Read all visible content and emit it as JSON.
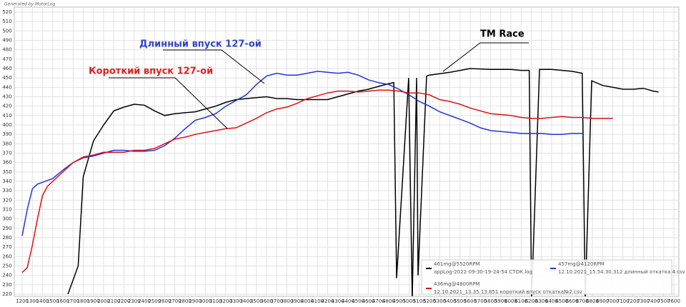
{
  "chart_data": {
    "type": "line",
    "title": "Generated by MotorLog",
    "xlim": [
      1200,
      7600
    ],
    "ylim": [
      220,
      520
    ],
    "xticks": [
      1200,
      1300,
      1400,
      1500,
      1600,
      1700,
      1800,
      1900,
      2000,
      2100,
      2200,
      2300,
      2400,
      2500,
      2600,
      2700,
      2800,
      2900,
      3000,
      3100,
      3200,
      3300,
      3400,
      3500,
      3600,
      3700,
      3800,
      3900,
      4000,
      4100,
      4200,
      4300,
      4400,
      4500,
      4600,
      4700,
      4800,
      4900,
      5000,
      5100,
      5200,
      5300,
      5400,
      5500,
      5600,
      5700,
      5800,
      5900,
      6000,
      6100,
      6200,
      6300,
      6400,
      6500,
      6600,
      6700,
      6800,
      6900,
      7000,
      7100,
      7200,
      7300,
      7400,
      7500,
      7600
    ],
    "yticks": [
      220,
      230,
      240,
      250,
      260,
      270,
      280,
      290,
      300,
      310,
      320,
      330,
      340,
      350,
      360,
      370,
      380,
      390,
      400,
      410,
      420,
      430,
      440,
      450,
      460,
      470,
      480,
      490,
      500,
      510,
      520
    ],
    "grid": true,
    "annotations": [
      {
        "text": "Длинный впуск 127-ой",
        "color": "#3344cc"
      },
      {
        "text": "Короткий впуск 127-ой",
        "color": "#dd2222"
      },
      {
        "text": "TM Race",
        "color": "#000000"
      }
    ],
    "series": [
      {
        "name": "appLog-2022-09-30-19-24-54 СТОК.log",
        "legend_label": "461mg@5520RPM",
        "color": "#000000",
        "x": [
          1650,
          1750,
          1800,
          1900,
          2000,
          2100,
          2200,
          2300,
          2400,
          2500,
          2600,
          2700,
          2800,
          2900,
          3000,
          3100,
          3200,
          3300,
          3400,
          3500,
          3600,
          3700,
          3800,
          3900,
          4000,
          4100,
          4200,
          4300,
          4400,
          4500,
          4600,
          4700,
          4800,
          4850,
          4877,
          4996,
          5031,
          5074,
          5088,
          5172,
          5200,
          5400,
          5500,
          5600,
          5800,
          6000,
          6100,
          6180,
          6203,
          6281,
          6400,
          6600,
          6700,
          6730,
          6793,
          6900,
          7000,
          7100,
          7200,
          7300,
          7400,
          7450
        ],
        "values": [
          220,
          250,
          345,
          383,
          400,
          415,
          419,
          422,
          421,
          415,
          410,
          412,
          413,
          414,
          417,
          420,
          424,
          427,
          428,
          429,
          430,
          428,
          428,
          427,
          427,
          427,
          427,
          430,
          433,
          436,
          438,
          441,
          444,
          445,
          237,
          450,
          215,
          450,
          240,
          452,
          453,
          456,
          458,
          460,
          459,
          459,
          458,
          458,
          215,
          459,
          459,
          457,
          455,
          215,
          447,
          442,
          440,
          438,
          438,
          439,
          436,
          435
        ]
      },
      {
        "name": "12.10.2021_15.54.30.312 длинный откатка 4.csv",
        "legend_label": "457mg@4120RPM",
        "color": "#2233dd",
        "x": [
          1200,
          1250,
          1300,
          1350,
          1400,
          1500,
          1600,
          1700,
          1800,
          1900,
          2000,
          2100,
          2200,
          2300,
          2400,
          2500,
          2600,
          2700,
          2800,
          2900,
          3000,
          3100,
          3200,
          3300,
          3400,
          3500,
          3600,
          3700,
          3800,
          3900,
          4000,
          4100,
          4200,
          4300,
          4400,
          4500,
          4600,
          4700,
          4800,
          4900,
          5000,
          5100,
          5200,
          5300,
          5400,
          5500,
          5600,
          5700,
          5800,
          5900,
          6000,
          6100,
          6200,
          6300,
          6400,
          6500,
          6600,
          6700
        ],
        "values": [
          282,
          310,
          332,
          337,
          339,
          343,
          352,
          360,
          365,
          367,
          370,
          373,
          373,
          372,
          372,
          373,
          378,
          386,
          396,
          405,
          408,
          412,
          420,
          426,
          432,
          443,
          452,
          455,
          453,
          453,
          455,
          457,
          456,
          455,
          456,
          453,
          448,
          445,
          443,
          438,
          432,
          425,
          420,
          414,
          410,
          406,
          402,
          397,
          394,
          393,
          392,
          391,
          391,
          391,
          390,
          390,
          391,
          391
        ]
      },
      {
        "name": "12.10.2021_13.35.13.851 короткий впуск откатка№2.csv",
        "legend_label": "436mg@4800RPM",
        "color": "#dd1111",
        "x": [
          1200,
          1250,
          1300,
          1350,
          1400,
          1450,
          1500,
          1600,
          1700,
          1800,
          1900,
          2000,
          2100,
          2200,
          2300,
          2400,
          2500,
          2600,
          2700,
          2800,
          2900,
          3000,
          3100,
          3200,
          3300,
          3400,
          3500,
          3600,
          3700,
          3800,
          3900,
          4000,
          4100,
          4200,
          4300,
          4400,
          4500,
          4600,
          4700,
          4800,
          4900,
          5000,
          5100,
          5200,
          5300,
          5400,
          5500,
          5600,
          5700,
          5800,
          5900,
          6000,
          6100,
          6200,
          6300,
          6400,
          6500,
          6600,
          6700,
          6800,
          6900,
          7000
        ],
        "values": [
          243,
          248,
          272,
          300,
          325,
          335,
          340,
          350,
          360,
          366,
          368,
          371,
          371,
          371,
          373,
          373,
          375,
          380,
          385,
          387,
          390,
          392,
          394,
          396,
          397,
          402,
          407,
          413,
          417,
          419,
          423,
          428,
          431,
          434,
          436,
          436,
          435,
          436,
          437,
          437,
          436,
          434,
          434,
          432,
          427,
          425,
          422,
          418,
          415,
          412,
          411,
          410,
          408,
          407,
          407,
          408,
          409,
          408,
          408,
          407,
          407,
          407
        ]
      }
    ]
  }
}
